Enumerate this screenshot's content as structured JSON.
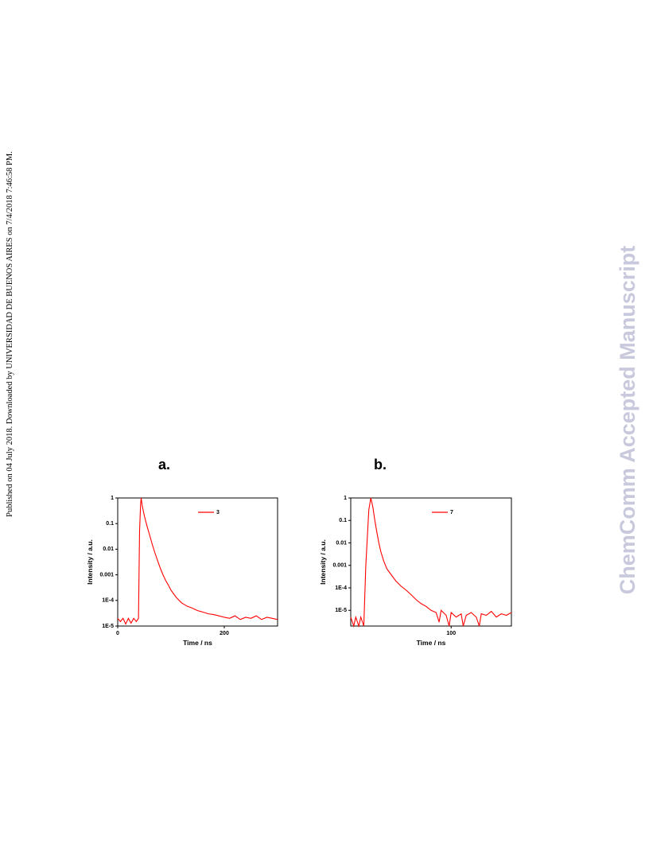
{
  "sidebar": "Published on 04 July 2018. Downloaded by UNIVERSIDAD DE BUENOS AIRES on 7/4/2018 7:46:58 PM.",
  "watermark": "ChemComm Accepted Manuscript",
  "figure": {
    "panels": [
      {
        "label": "a."
      },
      {
        "label": "b."
      }
    ]
  },
  "chart_data": [
    {
      "type": "line",
      "x_label": "Time / ns",
      "y_label": "Intensity / a.u.",
      "log_y": true,
      "legend": "top-right",
      "xlim": [
        0,
        300
      ],
      "xticks": [
        0,
        200
      ],
      "ylim": [
        1e-05,
        1
      ],
      "yticks": [
        1,
        0.1,
        0.01,
        0.001,
        {
          "value": 0.0001,
          "label": "1E-4"
        },
        {
          "value": 1e-05,
          "label": "1E-5"
        }
      ],
      "series": [
        {
          "name": "3",
          "color": "#ff0000",
          "x": [
            0,
            5,
            10,
            15,
            20,
            25,
            30,
            35,
            39,
            41,
            43,
            44,
            46,
            50,
            55,
            60,
            65,
            70,
            75,
            80,
            85,
            90,
            95,
            100,
            110,
            120,
            130,
            140,
            150,
            160,
            170,
            180,
            190,
            200,
            210,
            220,
            230,
            240,
            250,
            260,
            270,
            280,
            290,
            300
          ],
          "values": [
            2e-05,
            1.5e-05,
            2e-05,
            1.2e-05,
            2e-05,
            1.3e-05,
            2e-05,
            1.5e-05,
            2e-05,
            0.05,
            0.6,
            1,
            0.5,
            0.2,
            0.08,
            0.035,
            0.015,
            0.007,
            0.0035,
            0.0018,
            0.001,
            0.0006,
            0.0004,
            0.00025,
            0.00013,
            8e-05,
            6e-05,
            5e-05,
            4e-05,
            3.5e-05,
            3e-05,
            2.8e-05,
            2.5e-05,
            2.2e-05,
            2e-05,
            2.5e-05,
            1.8e-05,
            2.2e-05,
            2e-05,
            2.5e-05,
            1.8e-05,
            2.2e-05,
            2e-05,
            1.8e-05
          ]
        }
      ]
    },
    {
      "type": "line",
      "x_label": "Time / ns",
      "y_label": "Intensity / a.u.",
      "log_y": true,
      "legend": "top-right",
      "xlim": [
        0,
        160
      ],
      "xticks": [
        100
      ],
      "ylim": [
        2e-06,
        1
      ],
      "yticks": [
        1,
        0.1,
        0.01,
        0.001,
        {
          "value": 0.0001,
          "label": "1E-4"
        },
        {
          "value": 1e-05,
          "label": "1E-5"
        }
      ],
      "series": [
        {
          "name": "7",
          "color": "#ff0000",
          "x": [
            0,
            3,
            5,
            8,
            10,
            13,
            15,
            18,
            20,
            22,
            24,
            26,
            28,
            30,
            33,
            36,
            40,
            45,
            50,
            55,
            60,
            65,
            70,
            75,
            80,
            85,
            88,
            90,
            95,
            98,
            100,
            105,
            110,
            112,
            115,
            120,
            125,
            128,
            130,
            135,
            140,
            145,
            150,
            155,
            160
          ],
          "values": [
            5e-06,
            2e-06,
            5e-06,
            2e-06,
            5e-06,
            2e-06,
            0.001,
            0.3,
            1,
            0.4,
            0.1,
            0.03,
            0.01,
            0.004,
            0.0015,
            0.0007,
            0.0004,
            0.0002,
            0.00012,
            8e-05,
            5e-05,
            3e-05,
            2e-05,
            1.5e-05,
            1e-05,
            8e-06,
            3e-06,
            1e-05,
            6e-06,
            2e-06,
            8e-06,
            5e-06,
            7e-06,
            2e-06,
            6e-06,
            8e-06,
            5e-06,
            2e-06,
            7e-06,
            6e-06,
            9e-06,
            5e-06,
            7e-06,
            6e-06,
            8e-06
          ]
        }
      ]
    }
  ]
}
